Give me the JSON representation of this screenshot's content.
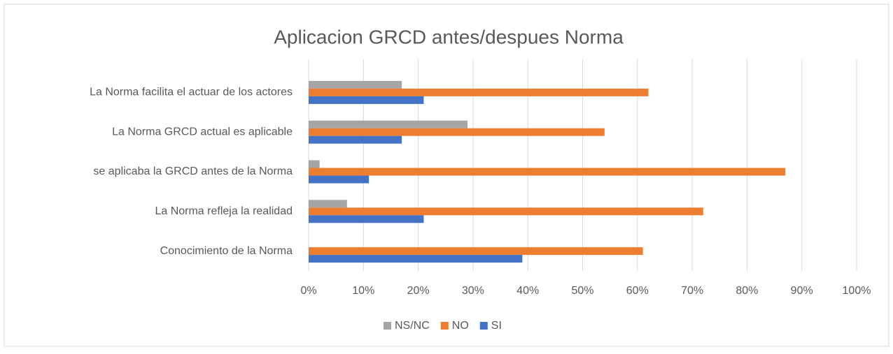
{
  "chart_data": {
    "type": "barh",
    "title": "Aplicacion GRCD antes/despues Norma",
    "categories": [
      "Conocimiento de la Norma",
      "La Norma refleja la realidad",
      "se aplicaba la GRCD antes de la Norma",
      "La Norma GRCD actual es aplicable",
      "La Norma facilita el actuar de los actores"
    ],
    "series": [
      {
        "name": "NS/NC",
        "color": "#a5a5a5",
        "values": [
          0,
          7,
          2,
          29,
          17
        ]
      },
      {
        "name": "NO",
        "color": "#ed7d31",
        "values": [
          61,
          72,
          87,
          54,
          62
        ]
      },
      {
        "name": "SI",
        "color": "#4472c4",
        "values": [
          39,
          21,
          11,
          17,
          21
        ]
      }
    ],
    "xlim": [
      0,
      100
    ],
    "xticks": [
      {
        "value": 0,
        "label": "0%"
      },
      {
        "value": 10,
        "label": "10%"
      },
      {
        "value": 20,
        "label": "20%"
      },
      {
        "value": 30,
        "label": "30%"
      },
      {
        "value": 40,
        "label": "40%"
      },
      {
        "value": 50,
        "label": "50%"
      },
      {
        "value": 60,
        "label": "60%"
      },
      {
        "value": 70,
        "label": "70%"
      },
      {
        "value": 80,
        "label": "80%"
      },
      {
        "value": 90,
        "label": "90%"
      },
      {
        "value": 100,
        "label": "100%"
      }
    ],
    "grid": true
  }
}
